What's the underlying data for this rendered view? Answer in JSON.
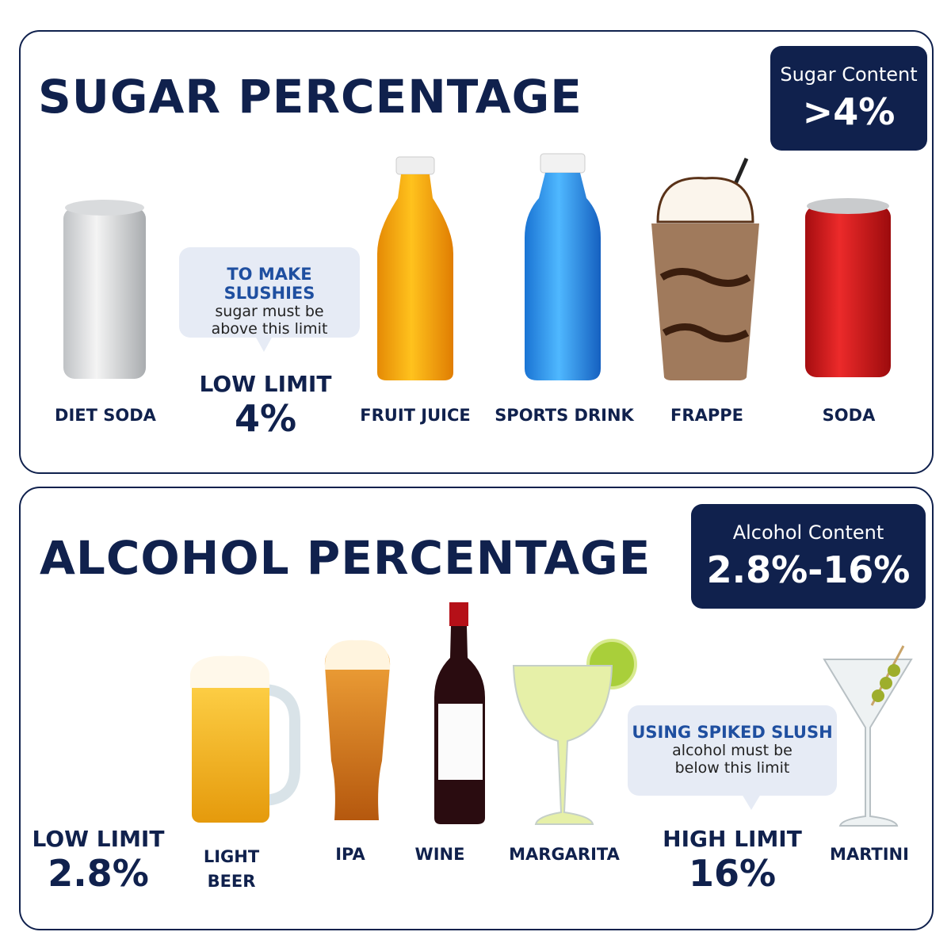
{
  "sugar": {
    "title": "SUGAR PERCENTAGE",
    "badge": {
      "label": "Sugar Content",
      "value": ">4%"
    },
    "callout": {
      "heading": "TO MAKE SLUSHIES",
      "lines": [
        "sugar must be",
        "above this limit"
      ]
    },
    "limit": {
      "label": "LOW LIMIT",
      "value": "4%"
    },
    "items": [
      "DIET SODA",
      "FRUIT JUICE",
      "SPORTS DRINK",
      "FRAPPE",
      "SODA"
    ]
  },
  "alcohol": {
    "title": "ALCOHOL PERCENTAGE",
    "badge": {
      "label": "Alcohol Content",
      "value": "2.8%-16%"
    },
    "low_limit": {
      "label": "LOW LIMIT",
      "value": "2.8%"
    },
    "callout": {
      "heading": "USING SPIKED SLUSH",
      "lines": [
        "alcohol must be",
        "below this limit"
      ]
    },
    "high_limit": {
      "label": "HIGH LIMIT",
      "value": "16%"
    },
    "items": [
      "LIGHT BEER",
      "IPA",
      "WINE",
      "MARGARITA",
      "MARTINI"
    ]
  }
}
